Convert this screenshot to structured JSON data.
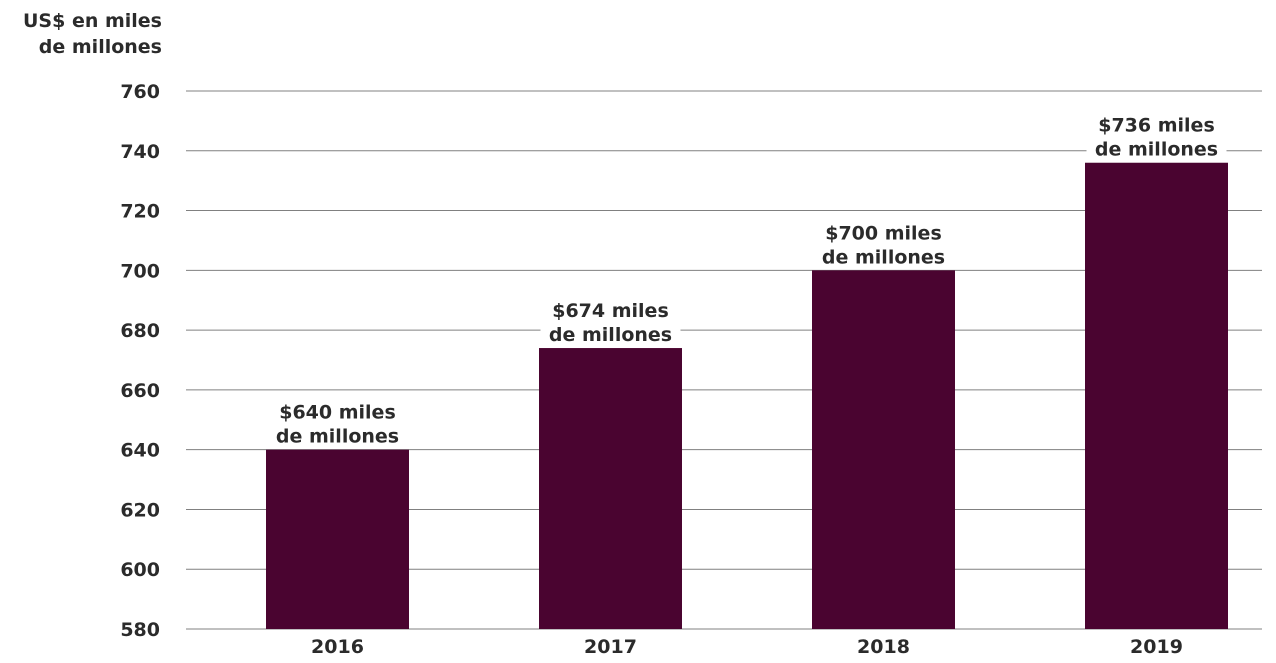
{
  "chart_data": {
    "type": "bar",
    "ylabel_lines": [
      "US$ en miles",
      "de millones"
    ],
    "categories": [
      "2016",
      "2017",
      "2018",
      "2019"
    ],
    "values": [
      640,
      674,
      700,
      736
    ],
    "data_labels": [
      [
        "$640 miles",
        "de millones"
      ],
      [
        "$674 miles",
        "de millones"
      ],
      [
        "$700 miles",
        "de millones"
      ],
      [
        "$736 miles",
        "de millones"
      ]
    ],
    "ylim": [
      580,
      760
    ],
    "yticks": [
      580,
      600,
      620,
      640,
      660,
      680,
      700,
      720,
      740,
      760
    ],
    "grid": true,
    "legend": "none",
    "colors": {
      "bar": "#4a0430",
      "grid": "#808080",
      "text": "#2b2b2b"
    }
  }
}
